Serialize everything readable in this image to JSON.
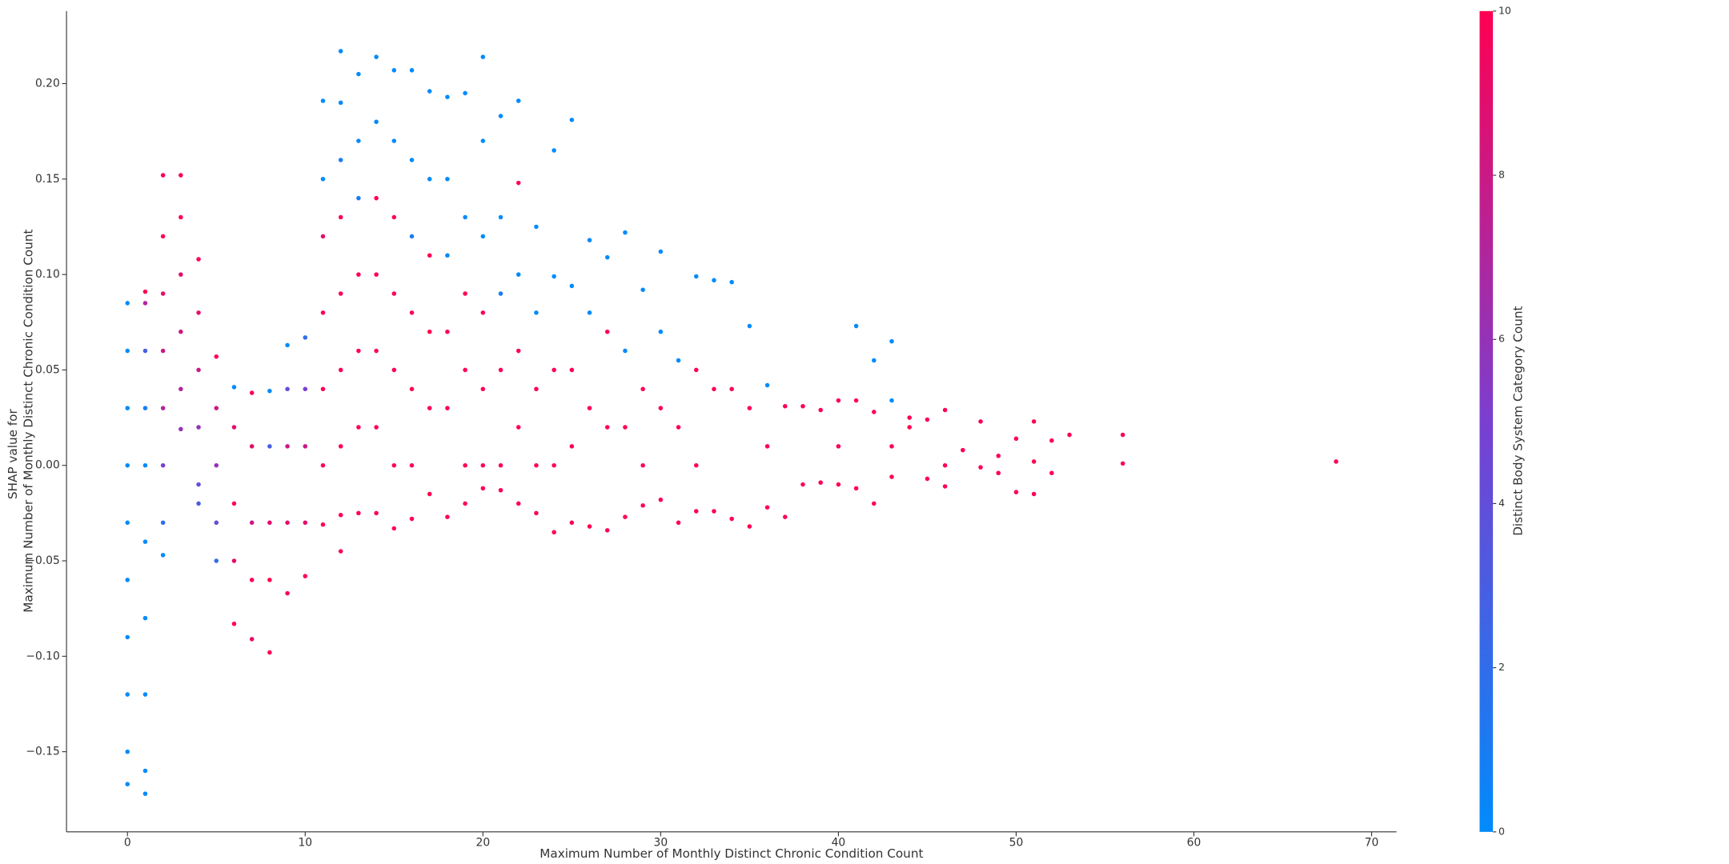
{
  "chart_data": {
    "type": "scatter",
    "x_label": "Maximum Number of Monthly Distinct Chronic Condition Count",
    "y_label": [
      "SHAP value for",
      "Maximum Number of Monthly Distinct Chronic Condition Count"
    ],
    "colorbar_label": "Distinct Body System Category Count",
    "colormap": [
      "#008bfb",
      "#7a3fd0",
      "#ff0052"
    ],
    "clim": [
      0,
      10
    ],
    "cticks": [
      0,
      2,
      4,
      6,
      8,
      10
    ],
    "xlim": [
      -3.43,
      71.4
    ],
    "xticks": [
      0,
      10,
      20,
      30,
      40,
      50,
      60,
      70
    ],
    "ylim": [
      -0.192,
      0.238
    ],
    "yticks": [
      {
        "value": -0.15,
        "label": "−0.15"
      },
      {
        "value": -0.1,
        "label": "−0.10"
      },
      {
        "value": -0.05,
        "label": "−0.05"
      },
      {
        "value": 0,
        "label": "0.00"
      },
      {
        "value": 0.05,
        "label": "0.05"
      },
      {
        "value": 0.1,
        "label": "0.10"
      },
      {
        "value": 0.15,
        "label": "0.15"
      },
      {
        "value": 0.2,
        "label": "0.20"
      }
    ],
    "columns": [
      {
        "x": 0,
        "values": [
          0.085,
          0.06,
          0.03,
          0,
          -0.03,
          -0.06,
          -0.09,
          -0.12,
          -0.15,
          -0.167
        ],
        "color_values": [
          0,
          0,
          0,
          0,
          0,
          0,
          0,
          0,
          0,
          0
        ]
      },
      {
        "x": 1,
        "values": [
          0.091,
          0.085,
          0.06,
          0.03,
          0,
          -0.04,
          -0.08,
          -0.12,
          -0.16,
          -0.172
        ],
        "color_values": [
          10,
          7,
          3,
          1,
          0,
          0,
          0,
          0,
          0,
          0
        ]
      },
      {
        "x": 2,
        "values": [
          0.152,
          0.12,
          0.09,
          0.06,
          0.03,
          0,
          -0.03,
          -0.047
        ],
        "color_values": [
          10,
          10,
          9,
          8,
          7,
          5,
          2,
          0
        ]
      },
      {
        "x": 3,
        "values": [
          0.152,
          0.13,
          0.1,
          0.07,
          0.04,
          0.019
        ],
        "color_values": [
          10,
          10,
          9,
          8,
          7,
          6
        ]
      },
      {
        "x": 4,
        "values": [
          0.108,
          0.08,
          0.05,
          0.02,
          -0.01,
          -0.02
        ],
        "color_values": [
          10,
          9,
          8,
          6,
          4,
          3
        ]
      },
      {
        "x": 5,
        "values": [
          0.057,
          0.03,
          0,
          -0.03,
          -0.05
        ],
        "color_values": [
          10,
          8,
          6,
          4,
          2
        ]
      },
      {
        "x": 6,
        "values": [
          0.041,
          0.02,
          -0.02,
          -0.05,
          -0.083
        ],
        "color_values": [
          0,
          9,
          10,
          9,
          10
        ]
      },
      {
        "x": 7,
        "values": [
          0.038,
          0.01,
          -0.03,
          -0.06,
          -0.091
        ],
        "color_values": [
          10,
          9,
          8,
          10,
          9
        ]
      },
      {
        "x": 8,
        "values": [
          0.039,
          0.01,
          -0.03,
          -0.06,
          -0.098
        ],
        "color_values": [
          0,
          3,
          9,
          10,
          10
        ]
      },
      {
        "x": 9,
        "values": [
          0.063,
          0.04,
          0.01,
          -0.03,
          -0.067
        ],
        "color_values": [
          0,
          4,
          8,
          9,
          10
        ]
      },
      {
        "x": 10,
        "values": [
          0.067,
          0.04,
          0.01,
          -0.03,
          -0.058
        ],
        "color_values": [
          2,
          5,
          8,
          9,
          10
        ]
      },
      {
        "x": 11,
        "values": [
          0.191,
          0.15,
          0.12,
          0.08,
          0.04,
          0,
          -0.031
        ],
        "color_values": [
          0,
          0,
          9,
          10,
          10,
          10,
          10
        ]
      },
      {
        "x": 12,
        "values": [
          0.217,
          0.19,
          0.16,
          0.13,
          0.09,
          0.05,
          0.01,
          -0.026,
          -0.045
        ],
        "color_values": [
          0,
          0,
          1,
          10,
          10,
          10,
          10,
          10,
          10
        ]
      },
      {
        "x": 13,
        "values": [
          0.205,
          0.17,
          0.14,
          0.1,
          0.06,
          0.02,
          -0.025
        ],
        "color_values": [
          0,
          0,
          1,
          10,
          10,
          10,
          10
        ]
      },
      {
        "x": 14,
        "values": [
          0.214,
          0.18,
          0.14,
          0.1,
          0.06,
          0.02,
          -0.025
        ],
        "color_values": [
          0,
          0,
          10,
          10,
          10,
          10,
          10
        ]
      },
      {
        "x": 15,
        "values": [
          0.207,
          0.17,
          0.13,
          0.09,
          0.05,
          0,
          -0.033
        ],
        "color_values": [
          0,
          0,
          10,
          10,
          10,
          10,
          10
        ]
      },
      {
        "x": 16,
        "values": [
          0.207,
          0.16,
          0.12,
          0.08,
          0.04,
          0,
          -0.028
        ],
        "color_values": [
          0,
          0,
          1,
          10,
          10,
          10,
          10
        ]
      },
      {
        "x": 17,
        "values": [
          0.196,
          0.15,
          0.11,
          0.07,
          0.03,
          -0.015
        ],
        "color_values": [
          0,
          0,
          10,
          10,
          10,
          10
        ]
      },
      {
        "x": 18,
        "values": [
          0.193,
          0.15,
          0.11,
          0.07,
          0.03,
          -0.027
        ],
        "color_values": [
          0,
          0,
          0,
          10,
          10,
          10
        ]
      },
      {
        "x": 19,
        "values": [
          0.195,
          0.13,
          0.09,
          0.05,
          0,
          -0.02
        ],
        "color_values": [
          0,
          0,
          10,
          10,
          10,
          10
        ]
      },
      {
        "x": 20,
        "values": [
          0.214,
          0.17,
          0.12,
          0.08,
          0.04,
          0,
          -0.012
        ],
        "color_values": [
          0,
          0,
          0,
          10,
          10,
          10,
          10
        ]
      },
      {
        "x": 21,
        "values": [
          0.183,
          0.13,
          0.09,
          0.05,
          0,
          -0.013
        ],
        "color_values": [
          0,
          0,
          1,
          10,
          10,
          10
        ]
      },
      {
        "x": 22,
        "values": [
          0.191,
          0.148,
          0.1,
          0.06,
          0.02,
          -0.02
        ],
        "color_values": [
          0,
          10,
          0,
          10,
          10,
          10
        ]
      },
      {
        "x": 23,
        "values": [
          0.125,
          0.08,
          0.04,
          0,
          -0.025
        ],
        "color_values": [
          0,
          0,
          10,
          10,
          10
        ]
      },
      {
        "x": 24,
        "values": [
          0.165,
          0.099,
          0.05,
          0,
          -0.035
        ],
        "color_values": [
          0,
          0,
          10,
          10,
          10
        ]
      },
      {
        "x": 25,
        "values": [
          0.181,
          0.094,
          0.05,
          0.01,
          -0.03
        ],
        "color_values": [
          0,
          0,
          10,
          10,
          10
        ]
      },
      {
        "x": 26,
        "values": [
          0.118,
          0.08,
          0.03,
          -0.032
        ],
        "color_values": [
          0,
          0,
          10,
          10
        ]
      },
      {
        "x": 27,
        "values": [
          0.109,
          0.07,
          0.02,
          -0.034
        ],
        "color_values": [
          0,
          10,
          10,
          10
        ]
      },
      {
        "x": 28,
        "values": [
          0.122,
          0.06,
          0.02,
          -0.027
        ],
        "color_values": [
          0,
          0,
          10,
          10
        ]
      },
      {
        "x": 29,
        "values": [
          0.092,
          0.04,
          0,
          -0.021
        ],
        "color_values": [
          0,
          10,
          10,
          10
        ]
      },
      {
        "x": 30,
        "values": [
          0.112,
          0.07,
          0.03,
          -0.018
        ],
        "color_values": [
          0,
          0,
          10,
          10
        ]
      },
      {
        "x": 31,
        "values": [
          0.055,
          0.02,
          -0.03
        ],
        "color_values": [
          0,
          10,
          10
        ]
      },
      {
        "x": 32,
        "values": [
          0.099,
          0.05,
          0,
          -0.024
        ],
        "color_values": [
          0,
          10,
          10,
          10
        ]
      },
      {
        "x": 33,
        "values": [
          0.097,
          0.04,
          -0.024
        ],
        "color_values": [
          0,
          10,
          10
        ]
      },
      {
        "x": 34,
        "values": [
          0.096,
          0.04,
          -0.028
        ],
        "color_values": [
          0,
          10,
          10
        ]
      },
      {
        "x": 35,
        "values": [
          0.073,
          0.03,
          -0.032
        ],
        "color_values": [
          0,
          10,
          10
        ]
      },
      {
        "x": 36,
        "values": [
          0.042,
          0.01,
          -0.022
        ],
        "color_values": [
          0,
          10,
          10
        ]
      },
      {
        "x": 37,
        "values": [
          0.031,
          -0.027
        ],
        "color_values": [
          10,
          10
        ]
      },
      {
        "x": 38,
        "values": [
          0.031,
          -0.01
        ],
        "color_values": [
          10,
          10
        ]
      },
      {
        "x": 39,
        "values": [
          0.029,
          -0.009
        ],
        "color_values": [
          10,
          10
        ]
      },
      {
        "x": 40,
        "values": [
          0.034,
          0.01,
          -0.01
        ],
        "color_values": [
          10,
          10,
          10
        ]
      },
      {
        "x": 41,
        "values": [
          0.073,
          0.034,
          -0.012
        ],
        "color_values": [
          0,
          10,
          10
        ]
      },
      {
        "x": 42,
        "values": [
          0.055,
          0.028,
          -0.02
        ],
        "color_values": [
          0,
          10,
          10
        ]
      },
      {
        "x": 43,
        "values": [
          0.065,
          0.034,
          0.01,
          -0.006
        ],
        "color_values": [
          0,
          0,
          10,
          10
        ]
      },
      {
        "x": 44,
        "values": [
          0.025,
          0.02
        ],
        "color_values": [
          10,
          10
        ]
      },
      {
        "x": 45,
        "values": [
          0.024,
          -0.007
        ],
        "color_values": [
          10,
          10
        ]
      },
      {
        "x": 46,
        "values": [
          0.029,
          0,
          -0.011
        ],
        "color_values": [
          10,
          10,
          10
        ]
      },
      {
        "x": 47,
        "values": [
          0.008
        ],
        "color_values": [
          10
        ]
      },
      {
        "x": 48,
        "values": [
          0.023,
          -0.001
        ],
        "color_values": [
          10,
          10
        ]
      },
      {
        "x": 49,
        "values": [
          0.005,
          -0.004
        ],
        "color_values": [
          10,
          10
        ]
      },
      {
        "x": 50,
        "values": [
          0.014,
          -0.014
        ],
        "color_values": [
          10,
          10
        ]
      },
      {
        "x": 51,
        "values": [
          0.023,
          0.002,
          -0.015
        ],
        "color_values": [
          10,
          10,
          10
        ]
      },
      {
        "x": 52,
        "values": [
          0.013,
          -0.004
        ],
        "color_values": [
          10,
          10
        ]
      },
      {
        "x": 53,
        "values": [
          0.016
        ],
        "color_values": [
          10
        ]
      },
      {
        "x": 56,
        "values": [
          0.016,
          0.001
        ],
        "color_values": [
          10,
          10
        ]
      },
      {
        "x": 68,
        "values": [
          0.002
        ],
        "color_values": [
          10
        ]
      }
    ]
  }
}
